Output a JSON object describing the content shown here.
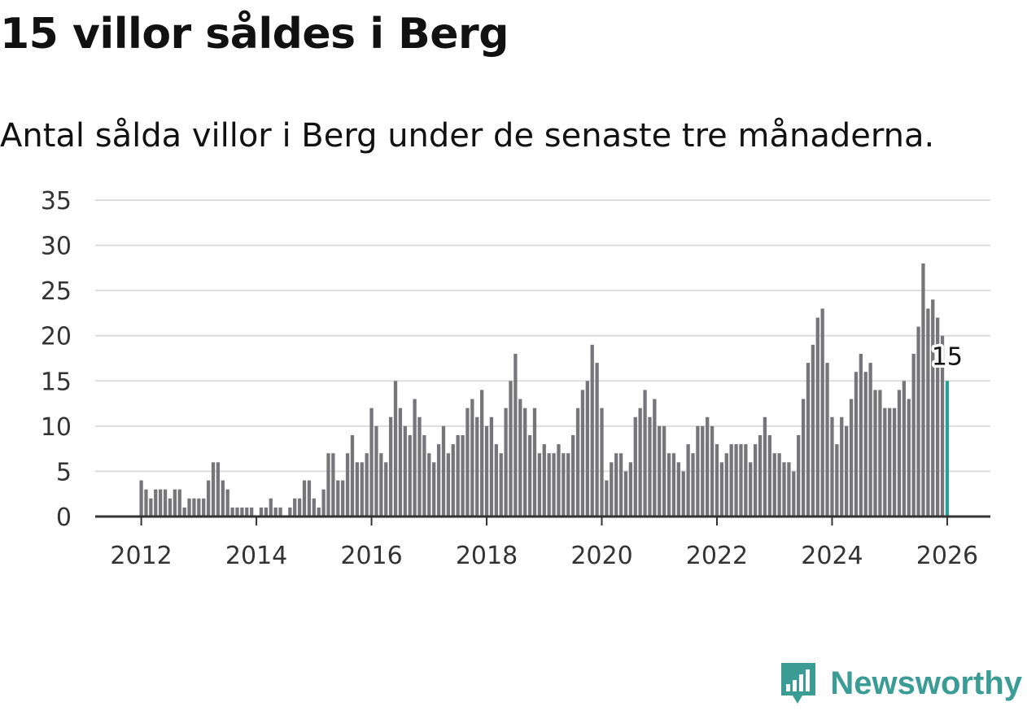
{
  "title": "15 villor såldes i Berg",
  "subtitle": "Antal sålda villor i Berg under de senaste tre månaderna.",
  "brand": "Newsworthy",
  "colors": {
    "bar": "#76757a",
    "highlight": "#2a9d96",
    "grid": "#dddddd",
    "axis": "#333333",
    "brand": "#3a9c95"
  },
  "chart_data": {
    "type": "bar",
    "title": "15 villor såldes i Berg",
    "subtitle": "Antal sålda villor i Berg under de senaste tre månaderna.",
    "xlabel": "",
    "ylabel": "",
    "ylim": [
      0,
      35
    ],
    "yticks": [
      0,
      5,
      10,
      15,
      20,
      25,
      30,
      35
    ],
    "xlim": [
      2011.2,
      2026.75
    ],
    "xticks": [
      2012,
      2014,
      2016,
      2018,
      2020,
      2022,
      2024,
      2026
    ],
    "xtick_labels": [
      "2012",
      "2014",
      "2016",
      "2018",
      "2020",
      "2022",
      "2024",
      "2026"
    ],
    "start_year": 2012,
    "start_month": 1,
    "values": [
      4,
      3,
      2,
      3,
      3,
      3,
      2,
      3,
      3,
      1,
      2,
      2,
      2,
      2,
      4,
      6,
      6,
      4,
      3,
      1,
      1,
      1,
      1,
      1,
      0,
      1,
      1,
      2,
      1,
      1,
      0,
      1,
      2,
      2,
      4,
      4,
      2,
      1,
      3,
      7,
      7,
      4,
      4,
      7,
      9,
      6,
      6,
      7,
      12,
      10,
      7,
      6,
      11,
      15,
      12,
      10,
      9,
      13,
      11,
      9,
      7,
      6,
      8,
      10,
      7,
      8,
      9,
      9,
      12,
      13,
      11,
      14,
      10,
      11,
      8,
      7,
      12,
      15,
      18,
      13,
      12,
      9,
      12,
      7,
      8,
      7,
      7,
      8,
      7,
      7,
      9,
      12,
      14,
      15,
      19,
      17,
      12,
      4,
      6,
      7,
      7,
      5,
      6,
      11,
      12,
      14,
      11,
      13,
      10,
      10,
      7,
      7,
      6,
      5,
      8,
      7,
      10,
      10,
      11,
      10,
      8,
      6,
      7,
      8,
      8,
      8,
      8,
      6,
      8,
      9,
      11,
      9,
      7,
      7,
      6,
      6,
      5,
      9,
      13,
      17,
      19,
      22,
      23,
      17,
      11,
      8,
      11,
      10,
      13,
      16,
      18,
      16,
      17,
      14,
      14,
      12,
      12,
      12,
      14,
      15,
      13,
      18,
      21,
      28,
      23,
      24,
      22,
      20,
      15
    ],
    "highlight_index": 168,
    "annotation": "15"
  }
}
